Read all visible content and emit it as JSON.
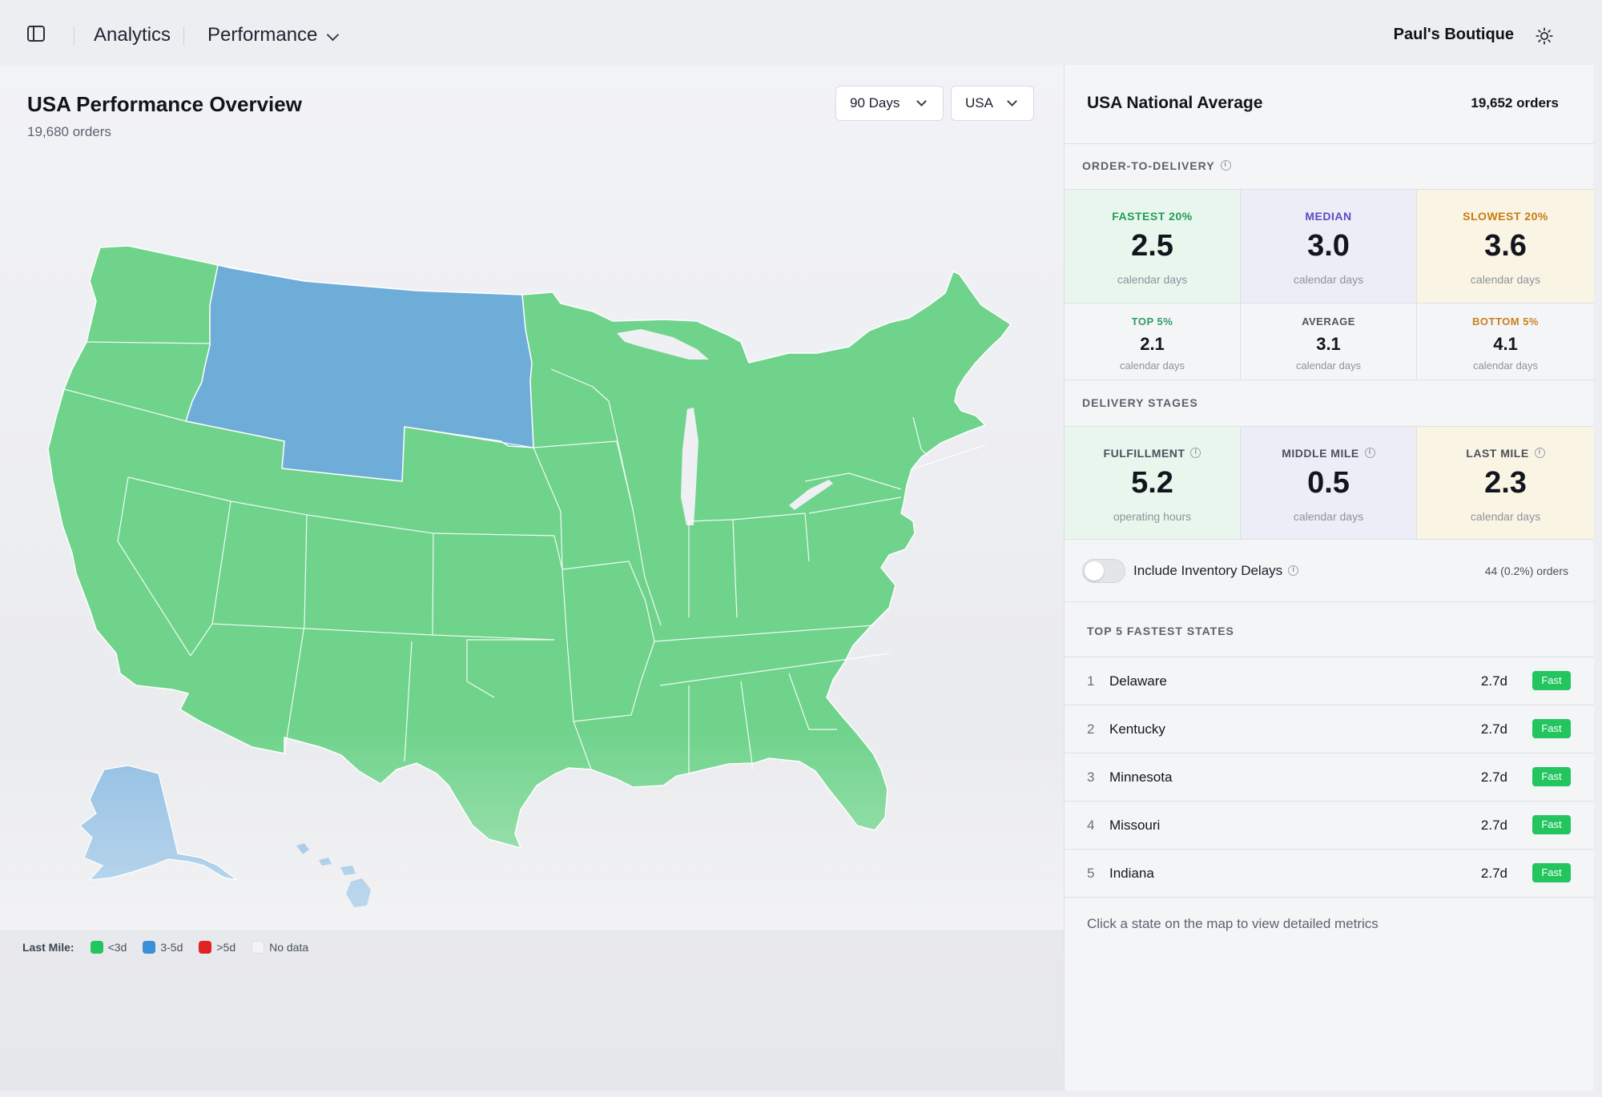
{
  "header": {
    "breadcrumb": [
      "Analytics",
      "Performance"
    ],
    "store_name": "Paul's Boutique",
    "icons": {
      "sidebar": "sidebar-toggle-icon",
      "theme": "sun-icon"
    }
  },
  "overview": {
    "title": "USA Performance Overview",
    "orders": "19,680 orders",
    "period_select": "90 Days",
    "region_select": "USA"
  },
  "legend": {
    "label": "Last Mile:",
    "items": [
      {
        "label": "<3d",
        "color": "#22c55e"
      },
      {
        "label": "3-5d",
        "color": "#3b8fd6"
      },
      {
        "label": ">5d",
        "color": "#e02424"
      },
      {
        "label": "No data",
        "color": "#f3f3f3"
      }
    ]
  },
  "map_colors": {
    "fast": "#6fd38b",
    "medium": "#6fadd9"
  },
  "national": {
    "title": "USA National Average",
    "orders": "19,652 orders",
    "order_to_delivery_label": "ORDER-TO-DELIVERY",
    "primary": [
      {
        "label": "FASTEST 20%",
        "value": "2.5",
        "unit": "calendar days",
        "color": "#1f9d57",
        "bg": "#e9f6ee"
      },
      {
        "label": "MEDIAN",
        "value": "3.0",
        "unit": "calendar days",
        "color": "#5b4bc4",
        "bg": "#ecedf7"
      },
      {
        "label": "SLOWEST 20%",
        "value": "3.6",
        "unit": "calendar days",
        "color": "#c97a10",
        "bg": "#faf4e4"
      }
    ],
    "secondary": [
      {
        "label": "TOP 5%",
        "value": "2.1",
        "unit": "calendar days",
        "color": "#2e9d66"
      },
      {
        "label": "AVERAGE",
        "value": "3.1",
        "unit": "calendar days",
        "color": "#50565f"
      },
      {
        "label": "BOTTOM 5%",
        "value": "4.1",
        "unit": "calendar days",
        "color": "#c98020"
      }
    ],
    "delivery_stages_label": "DELIVERY STAGES",
    "stages": [
      {
        "label": "FULFILLMENT",
        "value": "5.2",
        "unit": "operating hours",
        "bg": "#e9f6ee"
      },
      {
        "label": "MIDDLE MILE",
        "value": "0.5",
        "unit": "calendar days",
        "bg": "#ecedf7"
      },
      {
        "label": "LAST MILE",
        "value": "2.3",
        "unit": "calendar days",
        "bg": "#faf4e4"
      }
    ],
    "inventory_toggle_label": "Include Inventory Delays",
    "inventory_count": "44 (0.2%) orders",
    "top5_label": "TOP 5 FASTEST STATES",
    "top5": [
      {
        "rank": "1",
        "state": "Delaware",
        "value": "2.7d",
        "badge": "Fast"
      },
      {
        "rank": "2",
        "state": "Kentucky",
        "value": "2.7d",
        "badge": "Fast"
      },
      {
        "rank": "3",
        "state": "Minnesota",
        "value": "2.7d",
        "badge": "Fast"
      },
      {
        "rank": "4",
        "state": "Missouri",
        "value": "2.7d",
        "badge": "Fast"
      },
      {
        "rank": "5",
        "state": "Indiana",
        "value": "2.7d",
        "badge": "Fast"
      }
    ],
    "hint": "Click a state on the map to view detailed metrics"
  }
}
